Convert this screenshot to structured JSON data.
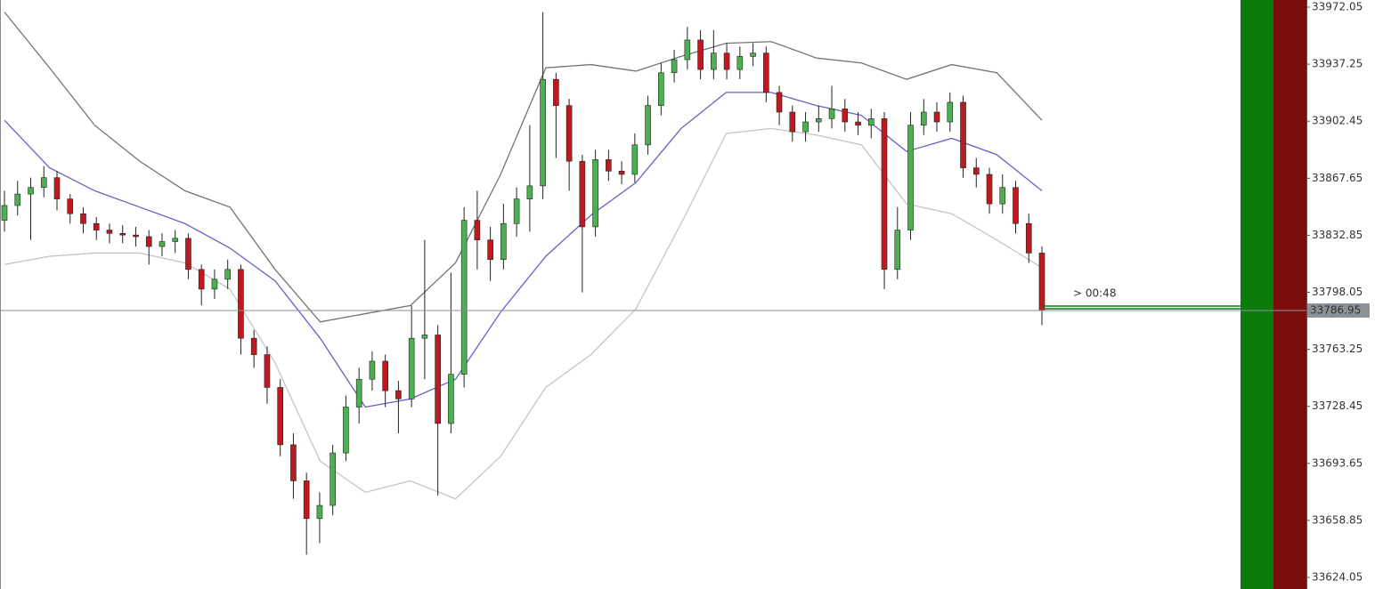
{
  "chart_data": {
    "type": "candlestick",
    "open": [
      33842,
      33851,
      33858,
      33862,
      33868,
      33855,
      33846,
      33840,
      33836,
      33834,
      33833,
      33832,
      33826,
      33829,
      33831,
      33812,
      33800,
      33806,
      33812,
      33770,
      33760,
      33740,
      33705,
      33683,
      33660,
      33668,
      33700,
      33728,
      33745,
      33756,
      33738,
      33733,
      33770,
      33772,
      33718,
      33748,
      33842,
      33830,
      33818,
      33840,
      33855,
      33863,
      33928,
      33912,
      33878,
      33838,
      33879,
      33872,
      33870,
      33888,
      33912,
      33932,
      33940,
      33952,
      33934,
      33944,
      33934,
      33942,
      33944,
      33920,
      33908,
      33896,
      33902,
      33904,
      33910,
      33902,
      33900,
      33904,
      33812,
      33836,
      33900,
      33908,
      33902,
      33914,
      33874,
      33870,
      33852,
      33862,
      33840,
      33822
    ],
    "high": [
      33860,
      33866,
      33868,
      33875,
      33872,
      33858,
      33850,
      33844,
      33840,
      33839,
      33838,
      33836,
      33834,
      33836,
      33834,
      33815,
      33812,
      33818,
      33815,
      33775,
      33765,
      33745,
      33712,
      33688,
      33676,
      33705,
      33735,
      33752,
      33762,
      33760,
      33744,
      33790,
      33830,
      33778,
      33810,
      33850,
      33860,
      33838,
      33852,
      33862,
      33900,
      33969,
      33932,
      33916,
      33882,
      33885,
      33885,
      33878,
      33895,
      33918,
      33938,
      33946,
      33960,
      33958,
      33958,
      33950,
      33948,
      33950,
      33948,
      33924,
      33912,
      33908,
      33912,
      33924,
      33916,
      33908,
      33910,
      33908,
      33850,
      33908,
      33916,
      33914,
      33920,
      33918,
      33880,
      33874,
      33870,
      33866,
      33846,
      33826
    ],
    "low": [
      33835,
      33845,
      33830,
      33856,
      33848,
      33840,
      33834,
      33830,
      33828,
      33828,
      33826,
      33815,
      33820,
      33822,
      33806,
      33790,
      33794,
      33800,
      33760,
      33752,
      33730,
      33698,
      33672,
      33638,
      33645,
      33662,
      33695,
      33718,
      33738,
      33728,
      33712,
      33728,
      33745,
      33674,
      33712,
      33740,
      33812,
      33805,
      33812,
      33832,
      33835,
      33855,
      33880,
      33860,
      33798,
      33832,
      33866,
      33864,
      33865,
      33882,
      33906,
      33926,
      33934,
      33928,
      33928,
      33928,
      33928,
      33936,
      33914,
      33900,
      33890,
      33890,
      33896,
      33898,
      33896,
      33894,
      33892,
      33800,
      33806,
      33830,
      33894,
      33896,
      33896,
      33868,
      33862,
      33846,
      33846,
      33834,
      33816,
      33778
    ],
    "close": [
      33851,
      33858,
      33862,
      33868,
      33855,
      33846,
      33840,
      33836,
      33834,
      33833,
      33832,
      33826,
      33829,
      33831,
      33812,
      33800,
      33806,
      33812,
      33770,
      33760,
      33740,
      33705,
      33683,
      33660,
      33668,
      33700,
      33728,
      33745,
      33756,
      33738,
      33733,
      33770,
      33772,
      33718,
      33748,
      33842,
      33830,
      33818,
      33840,
      33855,
      33863,
      33928,
      33912,
      33878,
      33838,
      33879,
      33872,
      33870,
      33888,
      33912,
      33932,
      33940,
      33952,
      33934,
      33944,
      33934,
      33942,
      33944,
      33920,
      33908,
      33896,
      33902,
      33904,
      33910,
      33902,
      33900,
      33904,
      33812,
      33836,
      33900,
      33908,
      33902,
      33914,
      33874,
      33870,
      33852,
      33862,
      33840,
      33822,
      33786.95
    ],
    "up_color": "#4caf50",
    "down_color": "#c0181f",
    "lines": [
      {
        "color": "#6e7478",
        "values": [
          33969,
          33935,
          33900,
          33878,
          33860,
          33850,
          33812,
          33780,
          33785,
          33790,
          33816,
          33870,
          33935,
          33937,
          33933,
          33942,
          33950,
          33951,
          33941,
          33938,
          33928,
          33937,
          33932,
          33903
        ]
      },
      {
        "color": "#6a5fc8",
        "values": [
          33903,
          33874,
          33860,
          33850,
          33840,
          33825,
          33805,
          33770,
          33728,
          33733,
          33745,
          33786,
          33820,
          33845,
          33865,
          33898,
          33920,
          33920,
          33912,
          33906,
          33884,
          33892,
          33882,
          33860
        ]
      },
      {
        "color": "#c4c4c4",
        "values": [
          33815,
          33820,
          33822,
          33822,
          33816,
          33800,
          33755,
          33695,
          33676,
          33683,
          33672,
          33698,
          33740,
          33760,
          33788,
          33840,
          33895,
          33898,
          33894,
          33888,
          33852,
          33846,
          33830,
          33813
        ]
      }
    ],
    "current_price": 33786.95,
    "countdown": "> 00:48",
    "ylim": [
      33617,
      33976.4
    ],
    "yticks": [
      33972.05,
      33937.25,
      33902.45,
      33867.65,
      33832.85,
      33798.05,
      33763.25,
      33728.45,
      33693.65,
      33658.85,
      33624.05
    ]
  }
}
